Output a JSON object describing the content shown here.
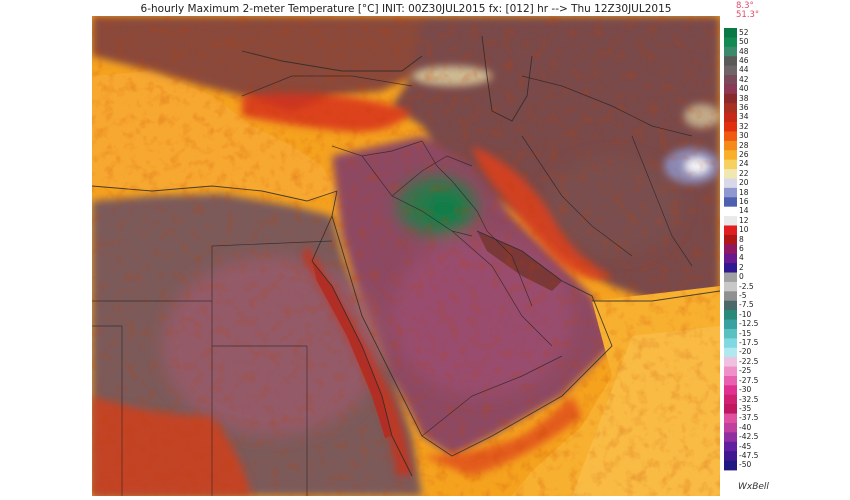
{
  "title": "6-hourly Maximum 2-meter Temperature [°C] INIT: 00Z30JUL2015 fx: [012] hr --> Thu 12Z30JUL2015",
  "legend": {
    "min_label": "8.3°",
    "max_label": "51.3°",
    "ticks": [
      "52",
      "50",
      "48",
      "46",
      "44",
      "42",
      "40",
      "38",
      "36",
      "34",
      "32",
      "30",
      "28",
      "26",
      "24",
      "22",
      "20",
      "18",
      "16",
      "14",
      "12",
      "10",
      "8",
      "6",
      "4",
      "2",
      "0",
      "-2.5",
      "-5",
      "-7.5",
      "-10",
      "-12.5",
      "-15",
      "-17.5",
      "-20",
      "-22.5",
      "-25",
      "-27.5",
      "-30",
      "-32.5",
      "-35",
      "-37.5",
      "-40",
      "-42.5",
      "-45",
      "-47.5",
      "-50"
    ],
    "colors": [
      "#0a7a45",
      "#128a52",
      "#3b8a6b",
      "#5a5a5a",
      "#6e6666",
      "#7a4a5a",
      "#8a3a55",
      "#8a2a2a",
      "#a83020",
      "#c82818",
      "#e03010",
      "#f05a10",
      "#f48a18",
      "#f8b02a",
      "#f8d060",
      "#f0e8b0",
      "#d8d8e8",
      "#9098d0",
      "#5060b0",
      "#ffffff",
      "#e9e9e9",
      "#e02020",
      "#b01818",
      "#901860",
      "#6a1890",
      "#301890",
      "#a0a0a0",
      "#c8c8c8",
      "#909090",
      "#4a6a6a",
      "#2a8a7a",
      "#3aa0a0",
      "#5ac0c0",
      "#80d8e0",
      "#b0e8f0",
      "#f0c0e0",
      "#f090c8",
      "#e860b0",
      "#e03090",
      "#d02070",
      "#c01860",
      "#e050a0",
      "#c040a0",
      "#9030a0",
      "#6020a0",
      "#401890",
      "#201880"
    ]
  },
  "brand": "WxBell"
}
